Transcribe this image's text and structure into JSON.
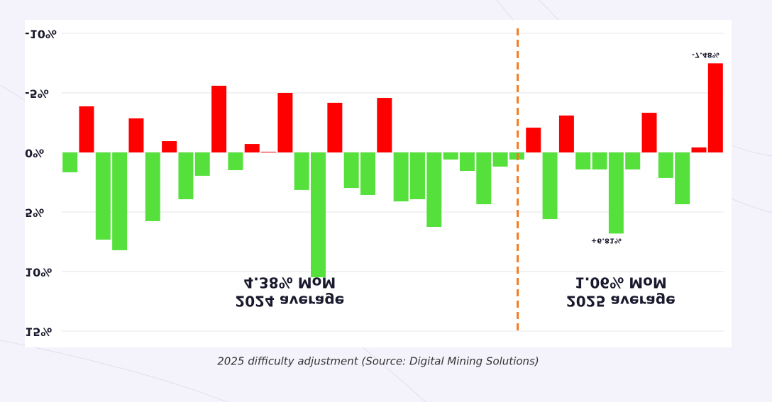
{
  "chart_data": {
    "type": "bar",
    "caption": "2025 difficulty adjustment (Source: Digital Mining Solutions)",
    "categories": [
      null,
      null,
      null,
      null,
      null,
      null,
      null,
      null,
      null,
      null,
      null,
      null,
      null,
      null,
      null,
      null,
      null,
      null,
      null,
      null,
      null,
      null,
      null,
      null,
      null,
      null,
      null,
      null,
      null,
      null,
      null,
      null,
      null,
      null,
      null,
      null,
      null,
      null,
      null,
      null
    ],
    "values": [
      1.67,
      -3.87,
      7.32,
      8.21,
      -2.86,
      5.77,
      -0.95,
      3.93,
      1.96,
      -5.6,
      1.49,
      -0.71,
      -0.06,
      -5.0,
      3.15,
      10.48,
      -4.17,
      2.98,
      3.57,
      -4.58,
      4.11,
      3.93,
      6.25,
      0.6,
      1.55,
      4.35,
      1.19,
      0.6,
      -2.08,
      5.6,
      -3.1,
      1.43,
      1.43,
      6.81,
      1.43,
      -3.33,
      2.14,
      4.35,
      -0.42,
      -7.48
    ],
    "value_labels": [
      null,
      null,
      null,
      null,
      null,
      null,
      null,
      null,
      null,
      null,
      null,
      null,
      null,
      null,
      null,
      null,
      null,
      null,
      null,
      null,
      null,
      null,
      null,
      null,
      null,
      null,
      null,
      null,
      null,
      null,
      null,
      null,
      null,
      "+6.81%",
      null,
      null,
      null,
      null,
      null,
      "-7.48%"
    ],
    "positive_color": "#55e03c",
    "negative_color": "#ff0000",
    "divider_color": "#f47a1f",
    "divider_index": 27,
    "period_labels": [
      [
        "4.38% MoM",
        "2024 average"
      ],
      [
        "1.06% MoM",
        "2025 average"
      ]
    ],
    "ylim": [
      -10,
      15
    ],
    "y_inverted": true,
    "yticks": [
      {
        "value": -10,
        "label": "-10%"
      },
      {
        "value": -5,
        "label": "-5%"
      },
      {
        "value": 0,
        "label": "0%"
      },
      {
        "value": 5,
        "label": "5%"
      },
      {
        "value": 10,
        "label": "10%"
      },
      {
        "value": 15,
        "label": "15%"
      }
    ],
    "grid": true
  }
}
